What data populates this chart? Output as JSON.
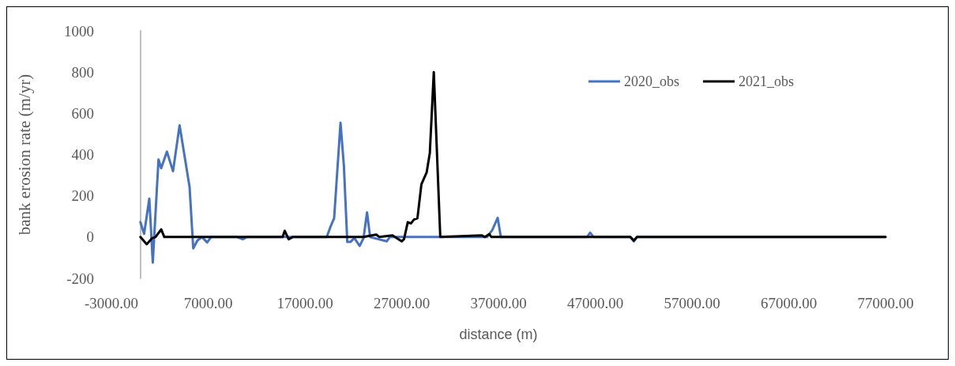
{
  "chart_data": {
    "type": "line",
    "xlabel": "distance (m)",
    "ylabel": "bank erosion rate (m/yr)",
    "xlim": [
      -3000,
      77000
    ],
    "xticks": [
      {
        "value": -3000,
        "label": "-3000.00"
      },
      {
        "value": 7000,
        "label": "7000.00"
      },
      {
        "value": 17000,
        "label": "17000.00"
      },
      {
        "value": 27000,
        "label": "27000.00"
      },
      {
        "value": 37000,
        "label": "37000.00"
      },
      {
        "value": 47000,
        "label": "47000.00"
      },
      {
        "value": 57000,
        "label": "57000.00"
      },
      {
        "value": 67000,
        "label": "67000.00"
      },
      {
        "value": 77000,
        "label": "77000.00"
      }
    ],
    "ylim": [
      -200,
      1000
    ],
    "yticks": [
      -200,
      0,
      200,
      400,
      600,
      800,
      1000
    ],
    "grid": false,
    "legend": "top right",
    "marker": "none",
    "line_style": "solid",
    "series": [
      {
        "name": "2020_obs",
        "color": "#4472c4",
        "x": [
          0,
          380,
          920,
          1280,
          1870,
          2150,
          2740,
          3370,
          4050,
          5080,
          5460,
          5890,
          6360,
          6900,
          7310,
          10000,
          10570,
          11000,
          19260,
          19670,
          20020,
          20680,
          21030,
          21380,
          21700,
          22110,
          22660,
          23060,
          23420,
          23740,
          25450,
          25780,
          35830,
          36370,
          36920,
          37250,
          46150,
          46480,
          46840,
          50640,
          50990,
          51320,
          77000
        ],
        "values": [
          72,
          15,
          186,
          -124,
          376,
          334,
          414,
          319,
          542,
          243,
          -55,
          -17,
          0,
          -26,
          0,
          0,
          -11,
          0,
          0,
          53,
          91,
          554,
          345,
          -24,
          -24,
          -5,
          -43,
          -5,
          119,
          0,
          -21,
          0,
          0,
          34,
          93,
          0,
          0,
          21,
          0,
          0,
          -21,
          0,
          0
        ]
      },
      {
        "name": "2021_obs",
        "color": "#000000",
        "x": [
          0,
          650,
          1200,
          1560,
          2150,
          2470,
          14700,
          14910,
          15320,
          15730,
          23060,
          24370,
          24700,
          26050,
          27000,
          27240,
          27630,
          27960,
          28280,
          28630,
          29040,
          29580,
          29910,
          30320,
          30990,
          35290,
          35600,
          36050,
          36280,
          50640,
          50990,
          51320,
          77000
        ],
        "values": [
          0,
          -35,
          -6,
          0,
          37,
          0,
          0,
          30,
          -11,
          0,
          0,
          12,
          0,
          8,
          -21,
          -11,
          72,
          66,
          85,
          91,
          256,
          313,
          408,
          800,
          0,
          8,
          0,
          14,
          0,
          0,
          -17,
          0,
          0
        ]
      }
    ]
  }
}
